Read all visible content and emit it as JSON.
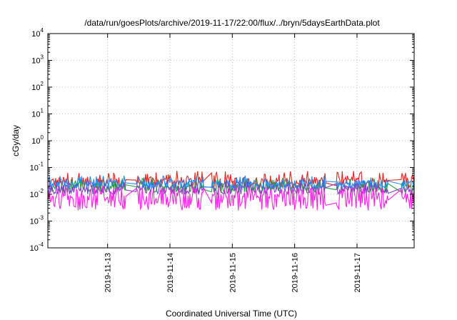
{
  "chart_data": {
    "type": "line",
    "title": "/data/run/goesPlots/archive/2019-11-17/22:00/flux/../bryn/5daysEarthData.plot",
    "xlabel": "Coordinated Universal Time (UTC)",
    "ylabel": "cGy/day",
    "y_scale": "log",
    "ylim": [
      0.0001,
      10000
    ],
    "xlim": [
      "2019-11-12 01:00",
      "2019-11-17 22:00"
    ],
    "x_ticks": [
      "2019-11-13",
      "2019-11-14",
      "2019-11-15",
      "2019-11-16",
      "2019-11-17"
    ],
    "y_ticks": [
      {
        "base": "10",
        "exp": "-4"
      },
      {
        "base": "10",
        "exp": "-3"
      },
      {
        "base": "10",
        "exp": "-2"
      },
      {
        "base": "10",
        "exp": "-1"
      },
      {
        "base": "10",
        "exp": "0"
      },
      {
        "base": "10",
        "exp": "1"
      },
      {
        "base": "10",
        "exp": "2"
      },
      {
        "base": "10",
        "exp": "3"
      },
      {
        "base": "10",
        "exp": "4"
      }
    ],
    "grid": true,
    "gaps": [
      [
        "2019-11-13 07:00",
        "2019-11-13 11:00"
      ],
      [
        "2019-11-14 13:00",
        "2019-11-14 16:00"
      ],
      [
        "2019-11-16 12:00",
        "2019-11-16 16:00"
      ],
      [
        "2019-11-17 12:00",
        "2019-11-17 17:00"
      ]
    ],
    "series": [
      {
        "color": "#e8201a",
        "baseline": 0.028,
        "spread": 0.7,
        "spike_max": 0.075
      },
      {
        "color": "#20a040",
        "baseline": 0.018,
        "spread": 0.6,
        "spike_max": 0.04
      },
      {
        "color": "#7d3fc2",
        "baseline": 0.015,
        "spread": 0.6,
        "spike_max": 0.035
      },
      {
        "color": "#1e88ff",
        "baseline": 0.024,
        "spread": 0.5,
        "spike_max": 0.05
      },
      {
        "color": "#ff1ee6",
        "baseline": 0.0048,
        "spread": 1.0,
        "spike_max": 0.02
      }
    ]
  }
}
